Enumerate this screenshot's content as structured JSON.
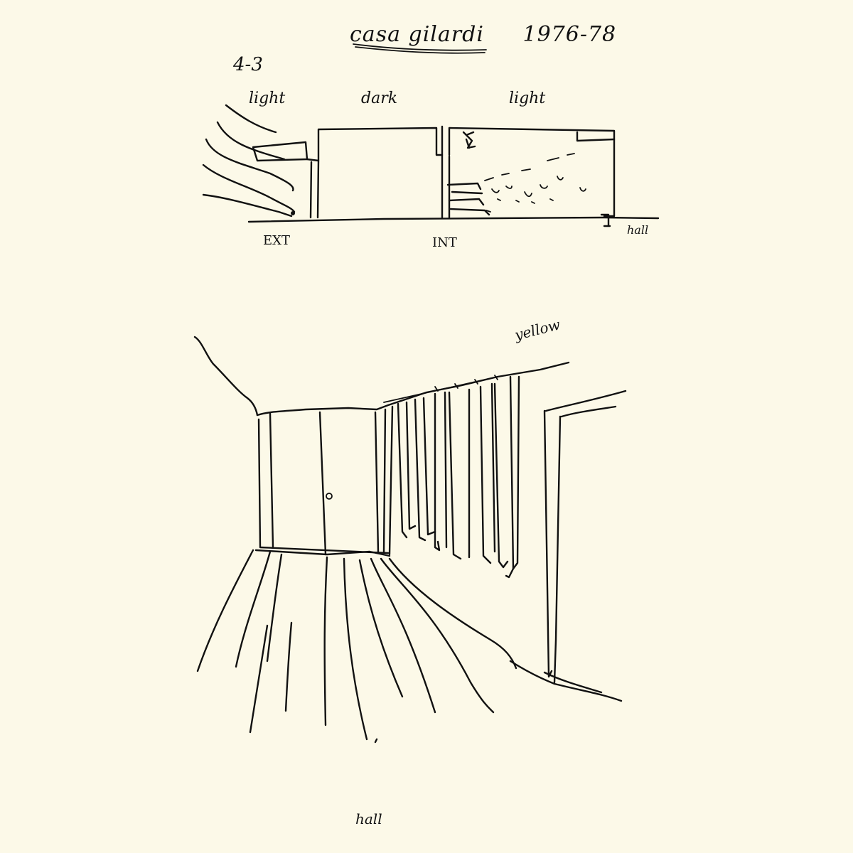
{
  "title": "casa gilardi",
  "years": "1976-78",
  "sheet_number": "4-3",
  "section": {
    "labels": {
      "light_left": "light",
      "dark": "dark",
      "light_right": "light",
      "exterior": "EXT",
      "interior": "INT",
      "hall": "hall"
    }
  },
  "perspective": {
    "labels": {
      "color_note": "yellow",
      "room": "hall"
    }
  }
}
